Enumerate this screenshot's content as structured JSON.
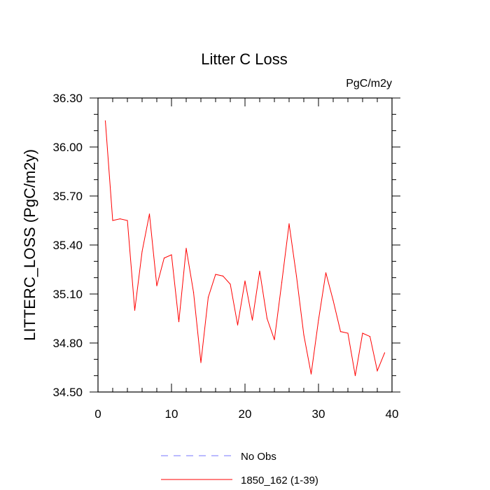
{
  "chart_data": {
    "type": "line",
    "title": "Litter C Loss",
    "units_label": "PgC/m2y",
    "ylabel": "LITTERC_LOSS  (PgC/m2y)",
    "xlabel": "",
    "xlim": [
      0,
      40
    ],
    "ylim": [
      34.5,
      36.3
    ],
    "x_ticks": [
      "0",
      "10",
      "20",
      "30",
      "40"
    ],
    "y_ticks": [
      "34.50",
      "34.80",
      "35.10",
      "35.40",
      "35.70",
      "36.00",
      "36.30"
    ],
    "grid": false,
    "legend_position": "bottom",
    "series": [
      {
        "name": "No Obs",
        "color": "#7777ff",
        "dash": "dashed",
        "x": [],
        "y": []
      },
      {
        "name": "1850_162 (1-39)",
        "color": "#ff0000",
        "dash": "solid",
        "x": [
          1,
          2,
          3,
          4,
          5,
          6,
          7,
          8,
          9,
          10,
          11,
          12,
          13,
          14,
          15,
          16,
          17,
          18,
          19,
          20,
          21,
          22,
          23,
          24,
          25,
          26,
          27,
          28,
          29,
          30,
          31,
          32,
          33,
          34,
          35,
          36,
          37,
          38,
          39
        ],
        "y": [
          36.16,
          35.55,
          35.56,
          35.55,
          35.0,
          35.36,
          35.59,
          35.15,
          35.32,
          35.34,
          34.93,
          35.38,
          35.11,
          34.68,
          35.08,
          35.22,
          35.21,
          35.16,
          34.91,
          35.18,
          34.94,
          35.24,
          34.95,
          34.82,
          35.17,
          35.53,
          35.21,
          34.85,
          34.61,
          34.94,
          35.23,
          35.06,
          34.87,
          34.86,
          34.6,
          34.86,
          34.84,
          34.63,
          34.74
        ]
      }
    ]
  }
}
